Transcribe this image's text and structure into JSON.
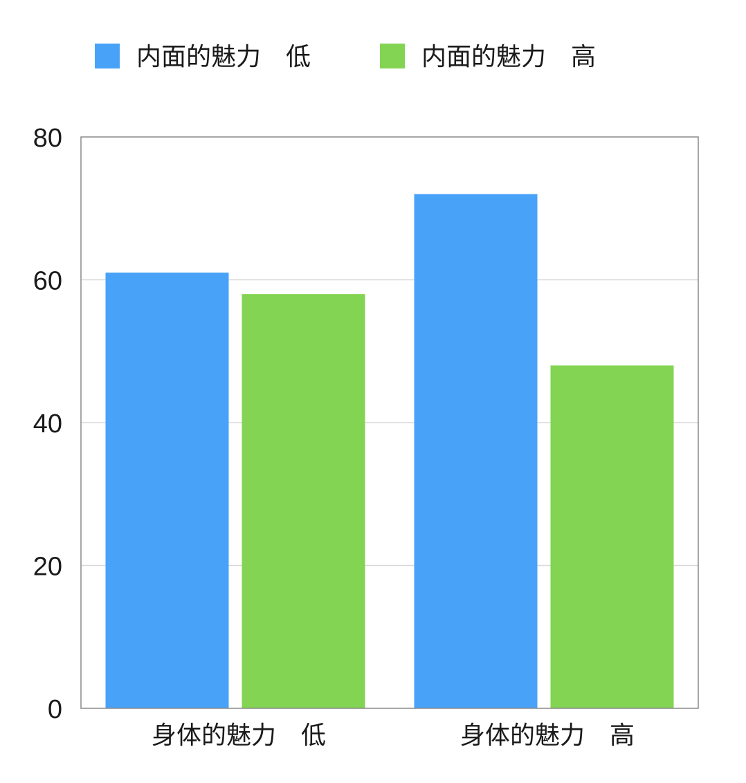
{
  "chart_data": {
    "type": "bar",
    "categories": [
      "身体的魅力　低",
      "身体的魅力　高"
    ],
    "series": [
      {
        "name": "内面的魅力　低",
        "values": [
          61,
          72
        ],
        "color": "#47A2F8"
      },
      {
        "name": "内面的魅力　高",
        "values": [
          58,
          48
        ],
        "color": "#83D452"
      }
    ],
    "ylim": [
      0,
      80
    ],
    "yticks": [
      0,
      20,
      40,
      60,
      80
    ],
    "grid": true,
    "legend_position": "top",
    "title": "",
    "xlabel": "",
    "ylabel": ""
  }
}
